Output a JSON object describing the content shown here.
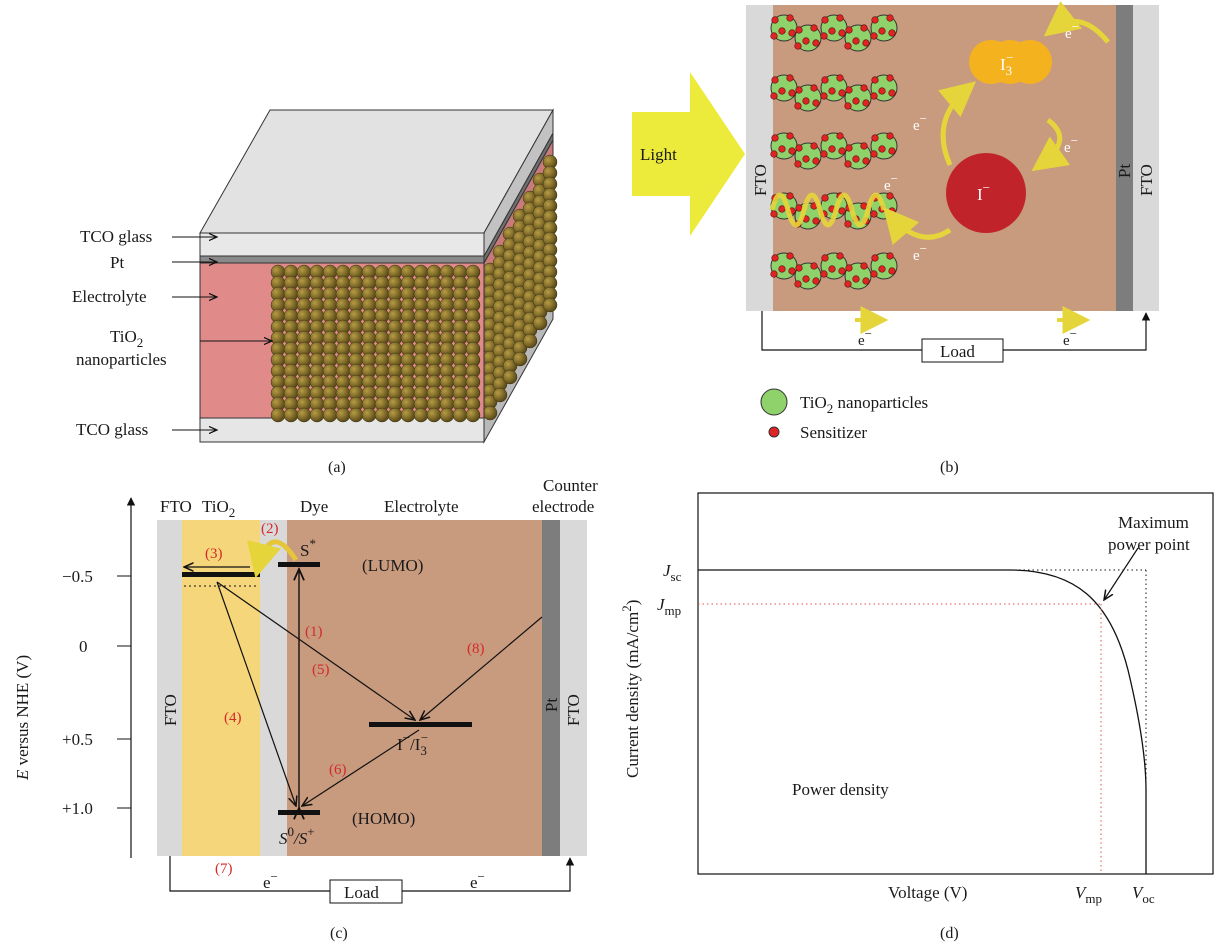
{
  "panel_a": {
    "caption": "(a)",
    "labels": {
      "tco_top": "TCO glass",
      "pt": "Pt",
      "electrolyte": "Electrolyte",
      "tio2_line1": "TiO",
      "tio2_sub": "2",
      "tio2_line2": "nanoparticles",
      "tco_bottom": "TCO glass"
    }
  },
  "panel_b": {
    "caption": "(b)",
    "light": "Light",
    "fto_left": "FTO",
    "fto_right": "FTO",
    "pt": "Pt",
    "electron": "e",
    "electron_sup": "−",
    "triiodide": "I",
    "triiodide_sub": "3",
    "triiodide_sup": "−",
    "iodide": "I",
    "iodide_sup": "−",
    "load": "Load",
    "legend": {
      "tio2": "TiO",
      "tio2_sub": "2",
      "tio2_rest": " nanoparticles",
      "sensitizer": "Sensitizer"
    },
    "colors": {
      "particle": "#8fd16a",
      "sensitizer": "#e02424",
      "electrolyte": "#c89a7e",
      "triiodide": "#f5b21f",
      "iodide": "#c0242a",
      "light": "#ecea3a"
    }
  },
  "panel_c": {
    "caption": "(c)",
    "headers": {
      "fto": "FTO",
      "tio2": "TiO",
      "tio2_sub": "2",
      "dye": "Dye",
      "electrolyte": "Electrolyte",
      "counter1": "Counter",
      "counter2": "electrode"
    },
    "y_axis": {
      "label_e": "E",
      "label_rest": " versus NHE (V)",
      "ticks": [
        "−0.5",
        "0",
        "+0.5",
        "+1.0"
      ]
    },
    "fto_left": "FTO",
    "pt": "Pt",
    "fto_right": "FTO",
    "levels": {
      "s_star": "S",
      "s_star_sup": "*",
      "lumo": "(LUMO)",
      "s0": "S",
      "s0_sup": "0",
      "s_plus": "/S",
      "s_plus_sup": "+",
      "homo": "(HOMO)",
      "redox": "I",
      "redox_sup": "−",
      "redox2": "/I",
      "redox2_sub": "3",
      "redox2_sup": "−"
    },
    "steps": [
      "(1)",
      "(2)",
      "(3)",
      "(4)",
      "(5)",
      "(6)",
      "(7)",
      "(8)"
    ],
    "electron": "e",
    "electron_sup": "−",
    "load": "Load"
  },
  "panel_d": {
    "caption": "(d)",
    "y_label": "Current density (mA/cm",
    "y_label_sup": "2",
    "y_label_end": ")",
    "x_label": "Voltage (V)",
    "jsc": "J",
    "jsc_sub": "sc",
    "jmp": "J",
    "jmp_sub": "mp",
    "vmp": "V",
    "vmp_sub": "mp",
    "voc": "V",
    "voc_sub": "oc",
    "mpp1": "Maximum",
    "mpp2": "power point",
    "power": "Power density"
  }
}
